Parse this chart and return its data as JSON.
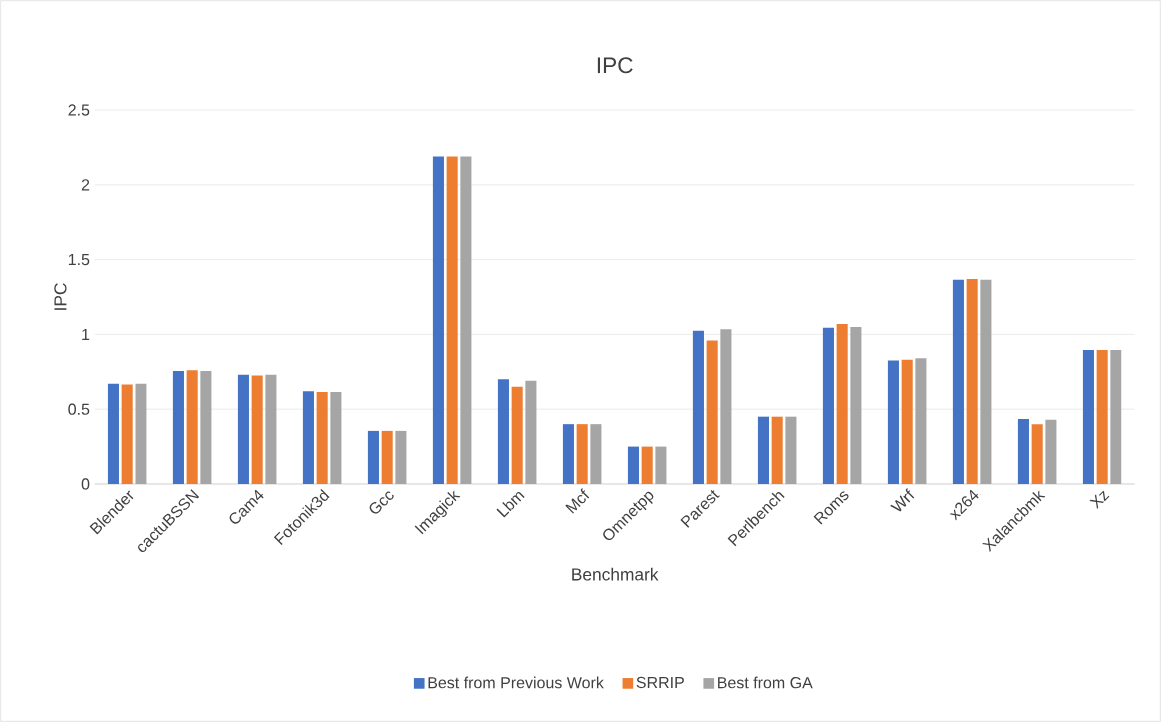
{
  "chart_data": {
    "type": "bar",
    "title": "IPC",
    "xlabel": "Benchmark",
    "ylabel": "IPC",
    "categories": [
      "Blender",
      "cactuBSSN",
      "Cam4",
      "Fotonik3d",
      "Gcc",
      "Imagick",
      "Lbm",
      "Mcf",
      "Omnetpp",
      "Parest",
      "Perlbench",
      "Roms",
      "Wrf",
      "x264",
      "Xalancbmk",
      "Xz"
    ],
    "series": [
      {
        "name": "Best from Previous Work",
        "color": "#4472c4",
        "values": [
          0.67,
          0.755,
          0.73,
          0.62,
          0.355,
          2.19,
          0.7,
          0.4,
          0.25,
          1.025,
          0.45,
          1.045,
          0.825,
          1.365,
          0.435,
          0.895
        ]
      },
      {
        "name": "SRRIP",
        "color": "#ed7d31",
        "values": [
          0.665,
          0.76,
          0.725,
          0.615,
          0.355,
          2.19,
          0.65,
          0.4,
          0.25,
          0.96,
          0.45,
          1.07,
          0.83,
          1.37,
          0.4,
          0.895
        ]
      },
      {
        "name": "Best from GA",
        "color": "#a5a5a5",
        "values": [
          0.67,
          0.755,
          0.73,
          0.615,
          0.355,
          2.19,
          0.69,
          0.4,
          0.25,
          1.035,
          0.45,
          1.05,
          0.84,
          1.365,
          0.43,
          0.895
        ]
      }
    ],
    "ylim": [
      0,
      2.5
    ],
    "yticks": [
      0,
      0.5,
      1,
      1.5,
      2,
      2.5
    ],
    "grid": "y",
    "legend": "bottom"
  }
}
